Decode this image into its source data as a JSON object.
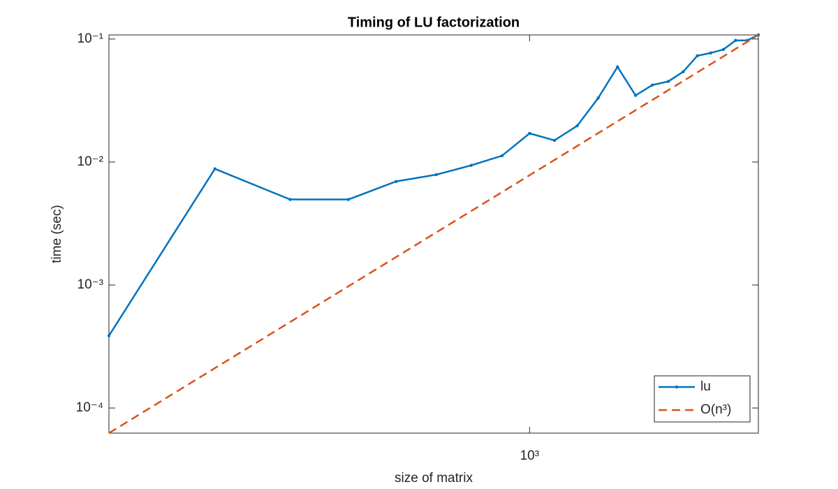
{
  "chart_data": {
    "type": "line",
    "title": "Timing of LU factorization",
    "x_label": "size of matrix",
    "y_label": "time (sec)",
    "x": [
      200,
      300,
      400,
      500,
      600,
      700,
      800,
      900,
      1000,
      1100,
      1200,
      1300,
      1400,
      1500,
      1600,
      1700,
      1800,
      1900,
      2000,
      2100,
      2200,
      2300,
      2400
    ],
    "series": [
      {
        "name": "lu",
        "color": "#0072bd",
        "style": "solid",
        "marker": true,
        "values": [
          0.000387,
          0.0088,
          0.00496,
          0.00496,
          0.00695,
          0.0079,
          0.0094,
          0.01125,
          0.0171,
          0.015,
          0.0197,
          0.0331,
          0.0594,
          0.0348,
          0.0423,
          0.0452,
          0.0542,
          0.0731,
          0.0771,
          0.0823,
          0.0975,
          0.0975,
          0.108
        ]
      },
      {
        "name": "O(n³)",
        "color": "#d95319",
        "style": "dashed",
        "marker": false,
        "values": [
          6.25e-05,
          0.000211,
          0.0005,
          0.000977,
          0.0016875,
          0.00268,
          0.004,
          0.005695,
          0.0078125,
          0.0104,
          0.0135,
          0.01716,
          0.02144,
          0.02637,
          0.032,
          0.03838,
          0.04556,
          0.05359,
          0.0625,
          0.07235,
          0.08319,
          0.09505,
          0.108
        ]
      }
    ],
    "x_log": true,
    "y_log": true,
    "xlim": [
      200,
      2400
    ],
    "ylim": [
      6.25e-05,
      0.108
    ],
    "xticks": [
      {
        "value": 1000,
        "label": "10³"
      }
    ],
    "yticks": [
      {
        "value": 0.0001,
        "label": "10⁻⁴"
      },
      {
        "value": 0.001,
        "label": "10⁻³"
      },
      {
        "value": 0.01,
        "label": "10⁻²"
      },
      {
        "value": 0.1,
        "label": "10⁻¹"
      }
    ],
    "legend": "southeast"
  }
}
